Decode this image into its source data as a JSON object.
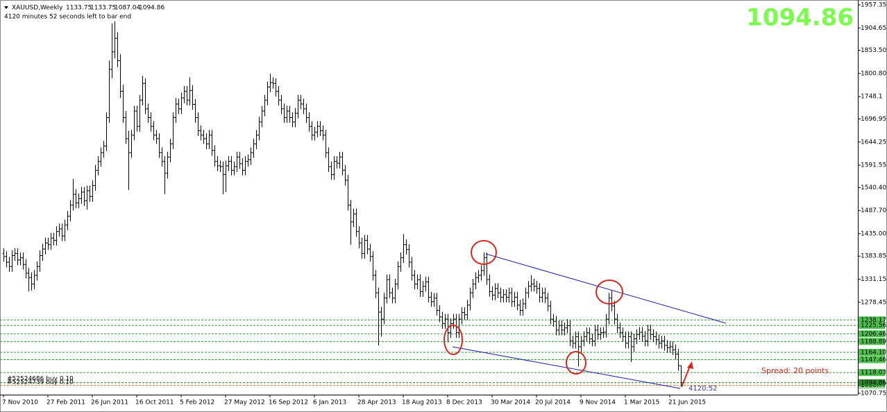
{
  "chart_data": {
    "type": "ohlc",
    "title": "XAUUSD,Weekly",
    "timer_text": "4120 minutes 52 seconds left to bar end",
    "spread_text": "Spread: 20 points",
    "countdown_text": "4120:52",
    "trade_labels": [
      "#52524686 buy 0.10",
      "#52524739 buy 0.10"
    ],
    "ylim": [
      1070.75,
      1957.35
    ],
    "yticks": [
      1957.35,
      1904.65,
      {
        "value": 1853.5,
        "label": "1853.50"
      },
      {
        "value": 1800.8,
        "label": "1800.80"
      },
      1748.1,
      1696.95,
      1644.25,
      1591.55,
      {
        "value": 1540.4,
        "label": "1540.40"
      },
      {
        "value": 1487.7,
        "label": "1487.70"
      },
      {
        "value": 1435,
        "label": "1435.00"
      },
      1383.85,
      1331.15,
      1278.45,
      1070.75
    ],
    "xticks": [
      {
        "value": 0,
        "label": "7 Nov 2010"
      },
      {
        "value": 16,
        "label": "27 Feb 2011"
      },
      {
        "value": 32,
        "label": "26 Jun 2011"
      },
      {
        "value": 48,
        "label": "16 Oct 2011"
      },
      {
        "value": 64,
        "label": "5 Feb 2012"
      },
      {
        "value": 80,
        "label": "27 May 2012"
      },
      {
        "value": 96,
        "label": "16 Sep 2012"
      },
      {
        "value": 112,
        "label": "6 Jan 2013"
      },
      {
        "value": 128,
        "label": "28 Apr 2013"
      },
      {
        "value": 144,
        "label": "18 Aug 2013"
      },
      {
        "value": 160,
        "label": "8 Dec 2013"
      },
      {
        "value": 176,
        "label": "30 Mar 2014"
      },
      {
        "value": 192,
        "label": "20 Jul 2014"
      },
      {
        "value": 208,
        "label": "9 Nov 2014"
      },
      {
        "value": 224,
        "label": "1 Mar 2015"
      },
      {
        "value": 240,
        "label": "21 Jun 2015"
      }
    ],
    "levels": [
      1238.17,
      1225.56,
      1206.46,
      1188.89,
      {
        "value": 1164.1,
        "label": "1164.10"
      },
      1147.46,
      1118.03
    ],
    "level_color": "#2e9e2e",
    "stop_level": 1088.77,
    "stop_color": "#e0701a",
    "bar_color": "#000000",
    "open": [
      1390,
      1383,
      1370,
      1360,
      1385,
      1390,
      1375,
      1380,
      1365,
      1345,
      1335,
      1320,
      1340,
      1360,
      1385,
      1400,
      1414,
      1410,
      1425,
      1420,
      1440,
      1446,
      1430,
      1455,
      1475,
      1500,
      1525,
      1505,
      1515,
      1530,
      1510,
      1533,
      1520,
      1545,
      1580,
      1600,
      1620,
      1635,
      1700,
      1810,
      1850,
      1881,
      1830,
      1760,
      1700,
      1652,
      1620,
      1660,
      1715,
      1680,
      1740,
      1778,
      1720,
      1700,
      1680,
      1660,
      1652,
      1620,
      1600,
      1573,
      1610,
      1640,
      1700,
      1731,
      1720,
      1745,
      1760,
      1740,
      1762,
      1730,
      1700,
      1670,
      1660,
      1652,
      1640,
      1660,
      1625,
      1600,
      1590,
      1588,
      1570,
      1590,
      1600,
      1580,
      1588,
      1610,
      1595,
      1580,
      1600,
      1604,
      1620,
      1640,
      1660,
      1690,
      1715,
      1740,
      1770,
      1780,
      1778,
      1760,
      1740,
      1720,
      1700,
      1715,
      1700,
      1690,
      1710,
      1740,
      1731,
      1720,
      1700,
      1680,
      1660,
      1667,
      1680,
      1670,
      1660,
      1620,
      1588,
      1570,
      1600,
      1596,
      1610,
      1580,
      1557,
      1500,
      1462,
      1480,
      1440,
      1414,
      1390,
      1420,
      1400,
      1383,
      1340,
      1300,
      1256,
      1240,
      1288,
      1330,
      1300,
      1288,
      1320,
      1360,
      1380,
      1410,
      1399,
      1370,
      1340,
      1320,
      1330,
      1303,
      1315,
      1325,
      1290,
      1280,
      1288,
      1260,
      1245,
      1230,
      1240,
      1209,
      1230,
      1240,
      1209,
      1240,
      1255,
      1250,
      1272,
      1300,
      1320,
      1335,
      1340,
      1351,
      1380,
      1330,
      1303,
      1295,
      1310,
      1300,
      1290,
      1296,
      1290,
      1300,
      1280,
      1290,
      1272,
      1260,
      1275,
      1300,
      1315,
      1320,
      1315,
      1310,
      1290,
      1300,
      1288,
      1270,
      1240,
      1235,
      1215,
      1225,
      1215,
      1220,
      1225,
      1190,
      1185,
      1200,
      1177,
      1190,
      1200,
      1209,
      1195,
      1190,
      1215,
      1205,
      1209,
      1210,
      1240,
      1288,
      1270,
      1240,
      1220,
      1209,
      1200,
      1185,
      1200,
      1177,
      1195,
      1205,
      1210,
      1201,
      1190,
      1215,
      1205,
      1200,
      1193,
      1185,
      1190,
      1180,
      1175,
      1177,
      1170,
      1160,
      1133.75
    ],
    "high": [
      1402,
      1395,
      1382,
      1397,
      1402,
      1402,
      1392,
      1392,
      1377,
      1357,
      1347,
      1352,
      1372,
      1397,
      1412,
      1426,
      1426,
      1437,
      1437,
      1452,
      1458,
      1458,
      1467,
      1487,
      1512,
      1560,
      1537,
      1527,
      1542,
      1542,
      1545,
      1545,
      1557,
      1592,
      1612,
      1632,
      1647,
      1712,
      1830,
      1915,
      1920,
      1895,
      1845,
      1775,
      1715,
      1670,
      1672,
      1727,
      1727,
      1752,
      1795,
      1790,
      1732,
      1712,
      1692,
      1672,
      1664,
      1632,
      1612,
      1622,
      1652,
      1712,
      1745,
      1743,
      1757,
      1772,
      1772,
      1792,
      1774,
      1742,
      1712,
      1682,
      1672,
      1664,
      1672,
      1672,
      1637,
      1612,
      1602,
      1600,
      1602,
      1612,
      1612,
      1600,
      1622,
      1622,
      1607,
      1612,
      1616,
      1632,
      1652,
      1672,
      1702,
      1727,
      1752,
      1782,
      1800,
      1792,
      1790,
      1772,
      1752,
      1732,
      1727,
      1727,
      1712,
      1722,
      1752,
      1752,
      1743,
      1732,
      1712,
      1692,
      1679,
      1692,
      1692,
      1682,
      1672,
      1632,
      1600,
      1612,
      1612,
      1622,
      1622,
      1592,
      1569,
      1512,
      1492,
      1492,
      1452,
      1426,
      1432,
      1432,
      1412,
      1395,
      1352,
      1312,
      1268,
      1300,
      1342,
      1342,
      1312,
      1332,
      1372,
      1392,
      1434,
      1422,
      1411,
      1382,
      1352,
      1342,
      1342,
      1327,
      1337,
      1337,
      1302,
      1300,
      1300,
      1272,
      1257,
      1252,
      1252,
      1242,
      1252,
      1252,
      1252,
      1267,
      1267,
      1284,
      1312,
      1332,
      1347,
      1352,
      1363,
      1392,
      1392,
      1342,
      1315,
      1322,
      1322,
      1312,
      1308,
      1308,
      1312,
      1312,
      1302,
      1302,
      1284,
      1287,
      1312,
      1327,
      1340,
      1332,
      1327,
      1322,
      1312,
      1312,
      1300,
      1282,
      1252,
      1247,
      1237,
      1237,
      1232,
      1240,
      1237,
      1202,
      1212,
      1212,
      1202,
      1212,
      1221,
      1221,
      1207,
      1227,
      1227,
      1221,
      1222,
      1252,
      1300,
      1305,
      1282,
      1252,
      1232,
      1221,
      1212,
      1212,
      1212,
      1207,
      1217,
      1222,
      1222,
      1213,
      1227,
      1227,
      1217,
      1212,
      1205,
      1202,
      1202,
      1192,
      1190,
      1189,
      1182,
      1172,
      1133.75
    ],
    "low": [
      1371,
      1358,
      1348,
      1348,
      1373,
      1363,
      1363,
      1353,
      1333,
      1303,
      1305,
      1308,
      1328,
      1348,
      1373,
      1388,
      1398,
      1398,
      1408,
      1408,
      1428,
      1418,
      1418,
      1443,
      1463,
      1488,
      1493,
      1493,
      1503,
      1498,
      1490,
      1508,
      1508,
      1533,
      1568,
      1588,
      1608,
      1623,
      1688,
      1790,
      1835,
      1815,
      1745,
      1688,
      1640,
      1535,
      1608,
      1648,
      1668,
      1668,
      1728,
      1708,
      1688,
      1668,
      1648,
      1640,
      1608,
      1588,
      1525,
      1561,
      1598,
      1628,
      1688,
      1708,
      1708,
      1733,
      1728,
      1728,
      1718,
      1688,
      1658,
      1648,
      1640,
      1628,
      1628,
      1613,
      1588,
      1578,
      1576,
      1525,
      1530,
      1578,
      1568,
      1568,
      1576,
      1583,
      1568,
      1568,
      1588,
      1592,
      1608,
      1628,
      1648,
      1678,
      1703,
      1728,
      1758,
      1766,
      1748,
      1728,
      1708,
      1688,
      1688,
      1688,
      1678,
      1678,
      1698,
      1719,
      1708,
      1688,
      1668,
      1648,
      1648,
      1655,
      1658,
      1648,
      1608,
      1576,
      1558,
      1558,
      1584,
      1584,
      1568,
      1545,
      1488,
      1410,
      1450,
      1428,
      1402,
      1378,
      1378,
      1388,
      1371,
      1328,
      1288,
      1180,
      1200,
      1228,
      1276,
      1288,
      1276,
      1276,
      1308,
      1348,
      1368,
      1387,
      1358,
      1328,
      1308,
      1308,
      1291,
      1291,
      1303,
      1278,
      1268,
      1268,
      1248,
      1233,
      1218,
      1218,
      1187,
      1197,
      1218,
      1197,
      1197,
      1228,
      1238,
      1238,
      1260,
      1288,
      1308,
      1323,
      1328,
      1339,
      1318,
      1291,
      1283,
      1283,
      1288,
      1278,
      1278,
      1278,
      1278,
      1268,
      1268,
      1260,
      1248,
      1248,
      1263,
      1288,
      1303,
      1303,
      1298,
      1278,
      1278,
      1276,
      1258,
      1228,
      1223,
      1203,
      1203,
      1203,
      1203,
      1208,
      1178,
      1173,
      1173,
      1132,
      1165,
      1178,
      1188,
      1183,
      1178,
      1178,
      1193,
      1193,
      1197,
      1198,
      1228,
      1258,
      1228,
      1208,
      1197,
      1188,
      1173,
      1173,
      1142,
      1165,
      1183,
      1193,
      1189,
      1178,
      1178,
      1193,
      1188,
      1181,
      1173,
      1173,
      1168,
      1163,
      1163,
      1158,
      1148,
      1122,
      1087.04
    ],
    "close": [
      1383,
      1370,
      1360,
      1385,
      1390,
      1375,
      1380,
      1365,
      1345,
      1335,
      1320,
      1340,
      1360,
      1385,
      1400,
      1414,
      1410,
      1425,
      1420,
      1440,
      1446,
      1430,
      1455,
      1475,
      1500,
      1525,
      1505,
      1515,
      1530,
      1510,
      1533,
      1520,
      1545,
      1580,
      1600,
      1620,
      1635,
      1700,
      1810,
      1850,
      1881,
      1830,
      1760,
      1700,
      1652,
      1620,
      1660,
      1715,
      1680,
      1740,
      1778,
      1720,
      1700,
      1680,
      1660,
      1652,
      1620,
      1600,
      1573,
      1610,
      1640,
      1700,
      1731,
      1720,
      1745,
      1760,
      1740,
      1762,
      1730,
      1700,
      1670,
      1660,
      1652,
      1640,
      1660,
      1625,
      1600,
      1590,
      1588,
      1570,
      1590,
      1600,
      1580,
      1588,
      1610,
      1595,
      1580,
      1600,
      1604,
      1620,
      1640,
      1660,
      1690,
      1715,
      1740,
      1770,
      1780,
      1778,
      1760,
      1740,
      1720,
      1700,
      1715,
      1700,
      1690,
      1710,
      1740,
      1731,
      1720,
      1700,
      1680,
      1660,
      1667,
      1680,
      1670,
      1660,
      1620,
      1588,
      1570,
      1600,
      1596,
      1610,
      1580,
      1557,
      1500,
      1462,
      1480,
      1440,
      1414,
      1390,
      1420,
      1400,
      1383,
      1340,
      1300,
      1256,
      1240,
      1288,
      1330,
      1300,
      1288,
      1320,
      1360,
      1380,
      1410,
      1399,
      1370,
      1340,
      1320,
      1330,
      1303,
      1315,
      1325,
      1290,
      1280,
      1288,
      1260,
      1245,
      1230,
      1240,
      1209,
      1230,
      1240,
      1209,
      1240,
      1255,
      1250,
      1272,
      1300,
      1320,
      1335,
      1340,
      1351,
      1380,
      1330,
      1303,
      1295,
      1310,
      1300,
      1290,
      1296,
      1290,
      1300,
      1280,
      1290,
      1272,
      1260,
      1275,
      1300,
      1315,
      1320,
      1315,
      1310,
      1290,
      1300,
      1288,
      1270,
      1240,
      1235,
      1215,
      1225,
      1215,
      1220,
      1225,
      1190,
      1185,
      1200,
      1177,
      1190,
      1200,
      1209,
      1195,
      1190,
      1215,
      1205,
      1209,
      1210,
      1240,
      1288,
      1270,
      1240,
      1220,
      1209,
      1200,
      1185,
      1200,
      1177,
      1195,
      1205,
      1210,
      1201,
      1190,
      1215,
      1205,
      1200,
      1193,
      1185,
      1190,
      1180,
      1175,
      1177,
      1170,
      1160,
      1134,
      1094.86
    ]
  }
}
